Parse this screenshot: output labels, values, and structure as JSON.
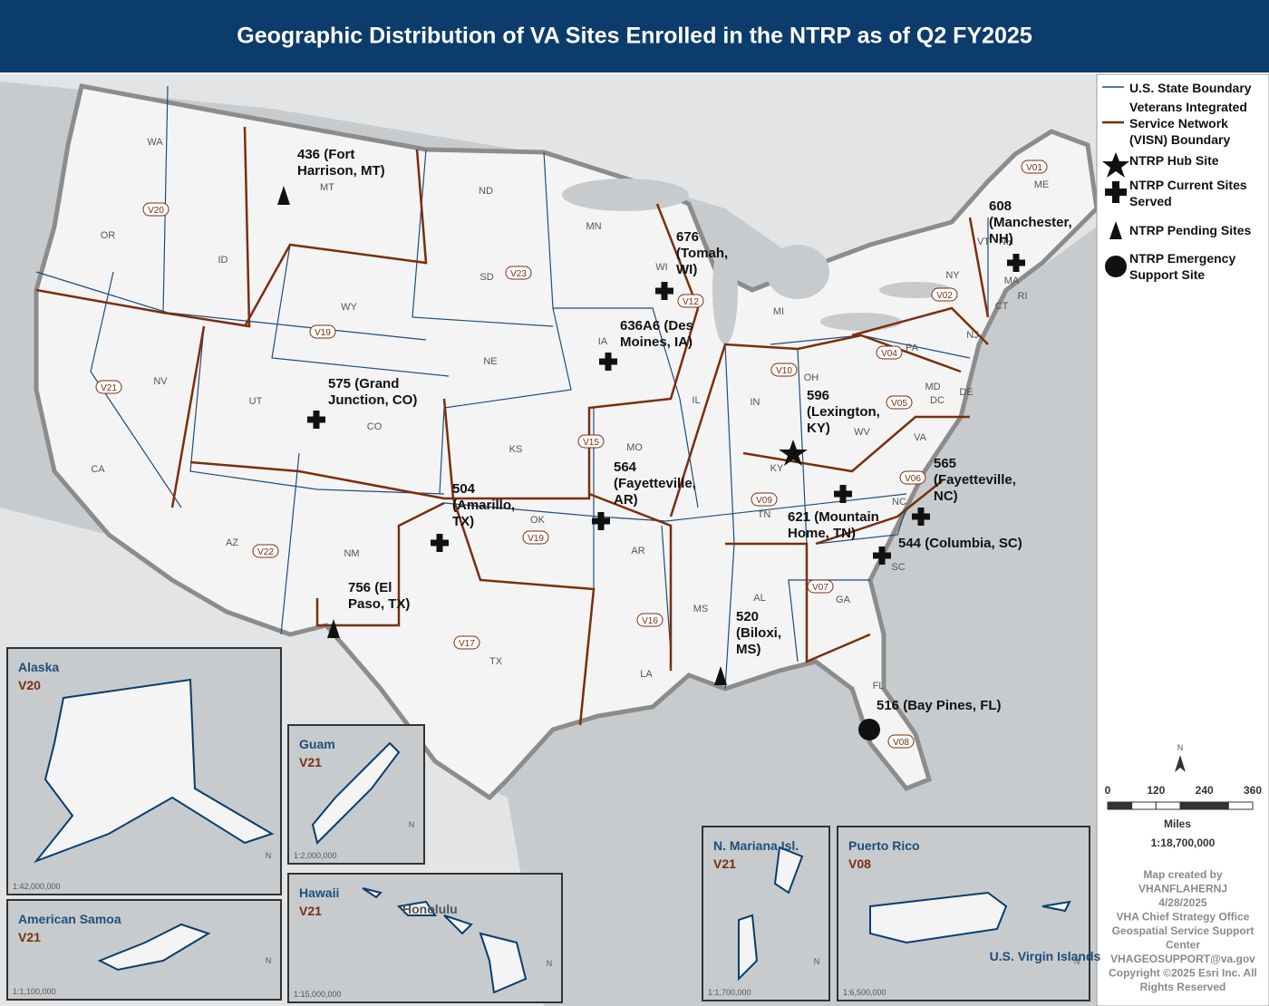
{
  "title": "Geographic Distribution of VA Sites Enrolled in the NTRP as of Q2 FY2025",
  "legend": [
    "U.S. State Boundary",
    "Veterans Integrated Service Network (VISN) Boundary",
    "NTRP Hub Site",
    "NTRP Current Sites Served",
    "NTRP Pending Sites",
    "NTRP Emergency Support Site"
  ],
  "sites": [
    "436 (Fort Harrison, MT)",
    "676 (Tomah, WI)",
    "636A6 (Des Moines, IA)",
    "575 (Grand Junction, CO)",
    "596 (Lexington, KY)",
    "564 (Fayetteville, AR)",
    "504 (Amarillo, TX)",
    "565 (Fayetteville, NC)",
    "621 (Mountain Home, TN)",
    "544 (Columbia, SC)",
    "756 (El Paso, TX)",
    "520 (Biloxi, MS)",
    "608 (Manchester, NH)",
    "516 (Bay Pines, FL)"
  ],
  "states": [
    "WA",
    "OR",
    "ID",
    "MT",
    "WY",
    "NV",
    "CA",
    "UT",
    "CO",
    "AZ",
    "NM",
    "ND",
    "SD",
    "NE",
    "KS",
    "OK",
    "TX",
    "MN",
    "IA",
    "MO",
    "AR",
    "LA",
    "WI",
    "IL",
    "MI",
    "IN",
    "OH",
    "KY",
    "TN",
    "MS",
    "AL",
    "GA",
    "FL",
    "SC",
    "NC",
    "VA",
    "WV",
    "PA",
    "NY",
    "VT",
    "NH",
    "ME",
    "MA",
    "RI",
    "CT",
    "NJ",
    "DE",
    "MD",
    "DC"
  ],
  "visns": [
    "V20",
    "V21",
    "V22",
    "V19",
    "V19",
    "V23",
    "V15",
    "V12",
    "V10",
    "V09",
    "V05",
    "V06",
    "V04",
    "V02",
    "V01",
    "V07",
    "V08",
    "V16",
    "V17"
  ],
  "insets": [
    {
      "name": "Alaska",
      "visn": "V20",
      "scale": "1:42,000,000"
    },
    {
      "name": "American Samoa",
      "visn": "V21",
      "scale": "1:1,100,000"
    },
    {
      "name": "Guam",
      "visn": "V21",
      "scale": "1:2,000,000"
    },
    {
      "name": "Hawaii",
      "visn": "V21",
      "scale": "1:15,000,000",
      "place": "Honolulu"
    },
    {
      "name": "N. Mariana Isl.",
      "visn": "V21",
      "scale": "1:1,700,000"
    },
    {
      "name": "Puerto Rico",
      "visn": "V08",
      "scale": "1:6,500,000",
      "place": "U.S. Virgin Islands"
    }
  ],
  "north": "N",
  "scale_bar": {
    "ticks": [
      0,
      120,
      240,
      360
    ],
    "unit": "Miles",
    "ratio": "1:18,700,000"
  },
  "credits": [
    "Map created by",
    "VHANFLAHERNJ",
    "4/28/2025",
    "VHA Chief Strategy Office",
    "Geospatial Service Support",
    "Center",
    "VHAGEOSUPPORT@va.gov",
    "Copyright ©2025 Esri Inc. All",
    "Rights Reserved"
  ]
}
